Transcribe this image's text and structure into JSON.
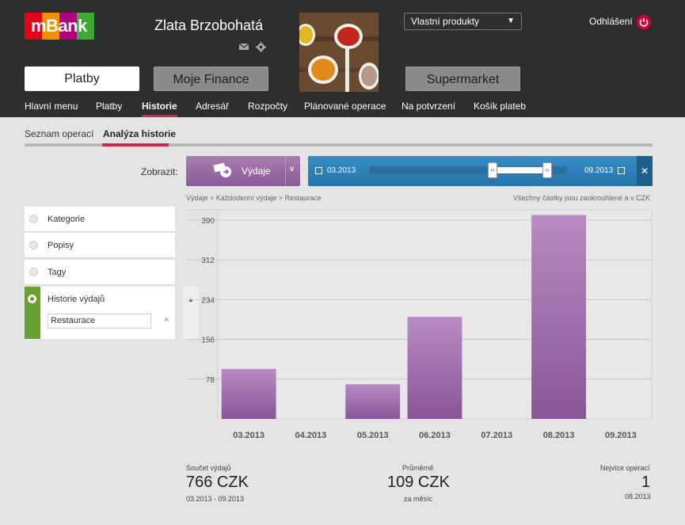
{
  "header": {
    "logo_text": "mBank",
    "user_name": "Zlata Brzobohatá",
    "product_select": "Vlastní produkty",
    "logout": "Odhlášení",
    "main_buttons": [
      "Platby",
      "Moje Finance",
      "Supermarket"
    ],
    "nav": [
      "Hlavní menu",
      "Platby",
      "Historie",
      "Adresář",
      "Rozpočty",
      "Plánované operace",
      "Na potvrzení",
      "Košík plateb"
    ]
  },
  "subnav": [
    "Seznam operací",
    "Analýza historie"
  ],
  "filter": {
    "zobrazit": "Zobrazit:",
    "type_button": "Výdaje",
    "date_from": "03.2013",
    "date_to": "09.2013"
  },
  "breadcrumb": "Výdaje  >  Každodenní výdaje  >  Restaurace",
  "rounding_note": "Všechny částky jsou zaokrouhlené a v CZK",
  "left_panel": {
    "items": [
      "Kategorie",
      "Popisy",
      "Tagy"
    ],
    "active_item": "Historie výdajů",
    "search_value": "Restaurace"
  },
  "chart_data": {
    "type": "bar",
    "categories": [
      "03.2013",
      "04.2013",
      "05.2013",
      "06.2013",
      "07.2013",
      "08.2013",
      "09.2013"
    ],
    "values": [
      98,
      0,
      68,
      200,
      0,
      400,
      0
    ],
    "yticks": [
      78,
      156,
      234,
      312,
      390
    ],
    "ylim": [
      0,
      410
    ],
    "grid": true,
    "bar_color": "#9b67a8"
  },
  "summary": {
    "total_label": "Součet výdajů",
    "total_value": "766 CZK",
    "total_period": "03.2013 - 09.2013",
    "avg_label": "Průměrně",
    "avg_value": "109 CZK",
    "avg_sub": "za měsíc",
    "max_label": "Nejvíce operací",
    "max_value": "1",
    "max_sub": "08.2013"
  }
}
